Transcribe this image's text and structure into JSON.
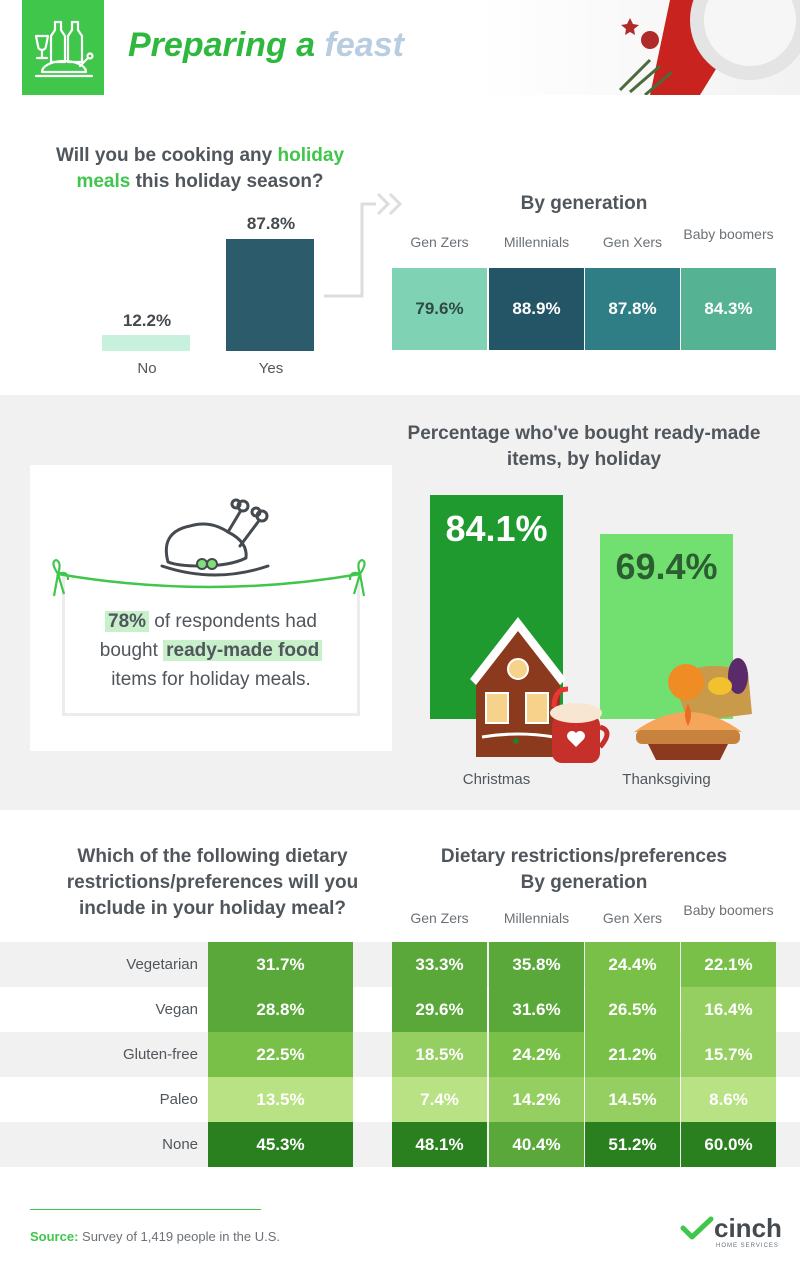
{
  "header": {
    "title_main": "Preparing a",
    "title_accent": "feast",
    "logo_icon": "turkey-and-wine-icon"
  },
  "colors": {
    "green": "#3fc64b",
    "teal_light": "#7fd3b4",
    "teal_dark": "#245567",
    "christmas_green": "#1f9a2e",
    "thanksgiving_green": "#72e070"
  },
  "section1": {
    "question_pre": "Will you be cooking any ",
    "question_highlight_1": "holiday",
    "question_highlight_2": "meals",
    "question_post": " this holiday season?",
    "generation_title": "By generation"
  },
  "section2": {
    "stat_value": "78%",
    "stat_text_1": " of respondents had",
    "stat_text_2": "bought ",
    "stat_highlight": "ready-made food",
    "stat_text_3": "items for holiday meals.",
    "question": "Percentage who've bought ready-made items, by holiday"
  },
  "section3": {
    "question_left": "Which of the following dietary restrictions/preferences will you include in your holiday meal?",
    "question_right_1": "Dietary restrictions/preferences",
    "question_right_2": "By generation"
  },
  "footer": {
    "source_label": "Source:",
    "source_text": " Survey of 1,419 people in the U.S.",
    "brand": "cinch",
    "brand_sub": "HOME SERVICES"
  },
  "chart_data": [
    {
      "type": "bar",
      "title": "Will you be cooking any holiday meals this holiday season?",
      "categories": [
        "No",
        "Yes"
      ],
      "values": [
        12.2,
        87.8
      ],
      "labels": [
        "12.2%",
        "87.8%"
      ],
      "ylim": [
        0,
        100
      ]
    },
    {
      "type": "table",
      "title": "By generation",
      "columns": [
        "Gen Zers",
        "Millennials",
        "Gen Xers",
        "Baby boomers"
      ],
      "values": [
        79.6,
        88.9,
        87.8,
        84.3
      ],
      "labels": [
        "79.6%",
        "88.9%",
        "87.8%",
        "84.3%"
      ],
      "colors": [
        "#7fd3b4",
        "#245567",
        "#2f7d85",
        "#55b393"
      ]
    },
    {
      "type": "bar",
      "title": "Percentage who've bought ready-made items, by holiday",
      "categories": [
        "Christmas",
        "Thanksgiving"
      ],
      "values": [
        84.1,
        69.4
      ],
      "labels": [
        "84.1%",
        "69.4%"
      ],
      "ylim": [
        0,
        100
      ]
    },
    {
      "type": "heatmap",
      "title": "Which of the following dietary restrictions/preferences will you include in your holiday meal?",
      "rows": [
        "Vegetarian",
        "Vegan",
        "Gluten-free",
        "Paleo",
        "None"
      ],
      "overall": [
        "31.7%",
        "28.8%",
        "22.5%",
        "13.5%",
        "45.3%"
      ],
      "overall_values": [
        31.7,
        28.8,
        22.5,
        13.5,
        45.3
      ],
      "columns": [
        "Gen Zers",
        "Millennials",
        "Gen Xers",
        "Baby boomers"
      ],
      "cells": [
        [
          "33.3%",
          "35.8%",
          "24.4%",
          "22.1%"
        ],
        [
          "29.6%",
          "31.6%",
          "26.5%",
          "16.4%"
        ],
        [
          "18.5%",
          "24.2%",
          "21.2%",
          "15.7%"
        ],
        [
          "7.4%",
          "14.2%",
          "14.5%",
          "8.6%"
        ],
        [
          "48.1%",
          "40.4%",
          "51.2%",
          "60.0%"
        ]
      ],
      "cell_values": [
        [
          33.3,
          35.8,
          24.4,
          22.1
        ],
        [
          29.6,
          31.6,
          26.5,
          16.4
        ],
        [
          18.5,
          24.2,
          21.2,
          15.7
        ],
        [
          7.4,
          14.2,
          14.5,
          8.6
        ],
        [
          48.1,
          40.4,
          51.2,
          60.0
        ]
      ]
    }
  ]
}
